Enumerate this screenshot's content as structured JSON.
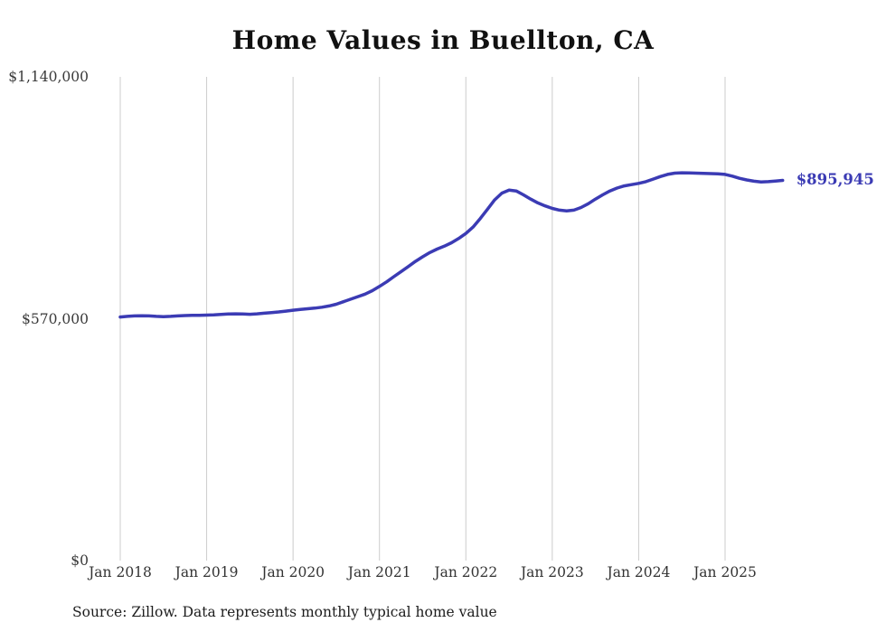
{
  "chart": {
    "title": "Home Values in Buellton, CA",
    "source": "Source: Zillow. Data represents monthly typical home value",
    "end_label": "$895,945",
    "line_color": "#3b3bb4",
    "grid_color": "#cccccc",
    "text_color": "#333333"
  },
  "chart_data": {
    "type": "line",
    "title": "Home Values in Buellton, CA",
    "xlabel": "",
    "ylabel": "",
    "x_start": "2018-01",
    "x_end": "2025-09",
    "x_frequency": "monthly",
    "x_tick_labels": [
      "Jan 2018",
      "Jan 2019",
      "Jan 2020",
      "Jan 2021",
      "Jan 2022",
      "Jan 2023",
      "Jan 2024",
      "Jan 2025"
    ],
    "y_tick_labels": [
      "$1,140,000",
      "$570,000",
      "$0"
    ],
    "y_tick_values": [
      1140000,
      570000,
      0
    ],
    "ylim": [
      0,
      1140000
    ],
    "grid": "vertical-only",
    "legend": "none",
    "end_value": 895945,
    "series": [
      {
        "name": "Typical home value",
        "values": [
          574000,
          575500,
          576500,
          577000,
          576500,
          575500,
          575000,
          575500,
          576500,
          577500,
          578000,
          578000,
          578500,
          579000,
          580000,
          581000,
          581500,
          581000,
          580500,
          581500,
          583000,
          584500,
          586000,
          588000,
          590000,
          592000,
          593500,
          595000,
          597000,
          600000,
          604000,
          610000,
          616000,
          622000,
          628000,
          636000,
          646000,
          657000,
          669000,
          681000,
          693000,
          705000,
          716000,
          726000,
          734000,
          741000,
          749000,
          759000,
          771000,
          786000,
          806000,
          828000,
          850000,
          866000,
          873000,
          871000,
          862000,
          852000,
          843000,
          836000,
          830000,
          826000,
          824000,
          826000,
          832000,
          841000,
          852000,
          862000,
          871000,
          878000,
          883000,
          886000,
          889000,
          893000,
          899000,
          905000,
          910000,
          913000,
          914000,
          913500,
          913000,
          912500,
          912000,
          911500,
          910000,
          906000,
          901000,
          897000,
          894000,
          892500,
          893000,
          894500,
          895945
        ]
      }
    ]
  }
}
